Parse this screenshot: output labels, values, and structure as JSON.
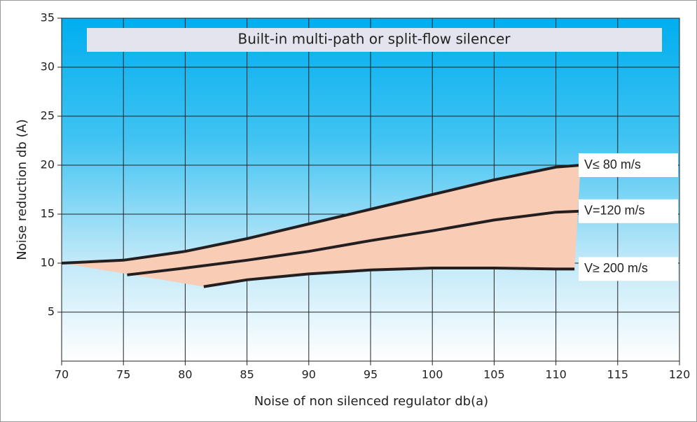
{
  "chart_data": {
    "type": "line",
    "title": "Built-in multi-path or split-flow silencer",
    "x_label": "Noise of non silenced regulator db(a)",
    "y_label": "Noise reduction db (A)",
    "xlim": [
      70,
      120
    ],
    "xticks": [
      70,
      75,
      80,
      85,
      90,
      95,
      100,
      105,
      110,
      115,
      120
    ],
    "ylim": [
      0,
      35
    ],
    "yticks": [
      5,
      10,
      15,
      20,
      25,
      30,
      35
    ],
    "grid": true,
    "band_color": "#f9ccb6",
    "series": [
      {
        "name": "V≤  80 m/s",
        "color": "#231f20",
        "x": [
          70,
          75,
          80,
          85,
          90,
          95,
          100,
          105,
          110,
          112
        ],
        "values": [
          10,
          10.3,
          11.2,
          12.5,
          14,
          15.5,
          17,
          18.5,
          19.8,
          20
        ]
      },
      {
        "name": "V=120 m/s",
        "color": "#231f20",
        "x": [
          75.3,
          80,
          85,
          90,
          95,
          100,
          105,
          110,
          112
        ],
        "values": [
          8.8,
          9.5,
          10.3,
          11.2,
          12.3,
          13.3,
          14.4,
          15.2,
          15.3
        ]
      },
      {
        "name": "V≥ 200 m/s",
        "color": "#231f20",
        "x": [
          81.5,
          85,
          90,
          95,
          100,
          105,
          110,
          111.5
        ],
        "values": [
          7.6,
          8.3,
          8.9,
          9.3,
          9.5,
          9.5,
          9.4,
          9.4
        ]
      }
    ]
  }
}
